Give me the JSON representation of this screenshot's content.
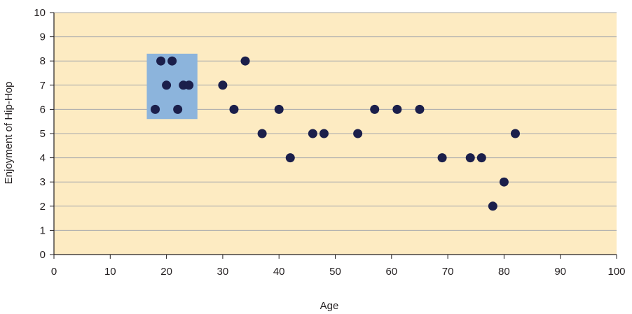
{
  "chart_data": {
    "type": "scatter",
    "title": "",
    "xlabel": "Age",
    "ylabel": "Enjoyment of Hip-Hop",
    "xlim": [
      0,
      100
    ],
    "ylim": [
      0,
      10
    ],
    "x_ticks": [
      0,
      10,
      20,
      30,
      40,
      50,
      60,
      70,
      80,
      90,
      100
    ],
    "y_ticks": [
      0,
      1,
      2,
      3,
      4,
      5,
      6,
      7,
      8,
      9,
      10
    ],
    "grid": "horizontal",
    "highlight_region": {
      "x": [
        16.5,
        25.5
      ],
      "y": [
        5.6,
        8.3
      ]
    },
    "points": [
      {
        "x": 18,
        "y": 6
      },
      {
        "x": 19,
        "y": 8
      },
      {
        "x": 20,
        "y": 7
      },
      {
        "x": 21,
        "y": 8
      },
      {
        "x": 22,
        "y": 6
      },
      {
        "x": 23,
        "y": 7
      },
      {
        "x": 24,
        "y": 7
      },
      {
        "x": 30,
        "y": 7
      },
      {
        "x": 32,
        "y": 6
      },
      {
        "x": 34,
        "y": 8
      },
      {
        "x": 37,
        "y": 5
      },
      {
        "x": 40,
        "y": 6
      },
      {
        "x": 42,
        "y": 4
      },
      {
        "x": 46,
        "y": 5
      },
      {
        "x": 48,
        "y": 5
      },
      {
        "x": 54,
        "y": 5
      },
      {
        "x": 57,
        "y": 6
      },
      {
        "x": 61,
        "y": 6
      },
      {
        "x": 65,
        "y": 6
      },
      {
        "x": 69,
        "y": 4
      },
      {
        "x": 74,
        "y": 4
      },
      {
        "x": 76,
        "y": 4
      },
      {
        "x": 78,
        "y": 2
      },
      {
        "x": 80,
        "y": 3
      },
      {
        "x": 82,
        "y": 5
      }
    ],
    "colors": {
      "plot_background": "#fdebc2",
      "gridline": "#a7a9ac",
      "axis": "#231f20",
      "point": "#1b1f4b",
      "highlight": "#8cb4dc"
    }
  }
}
